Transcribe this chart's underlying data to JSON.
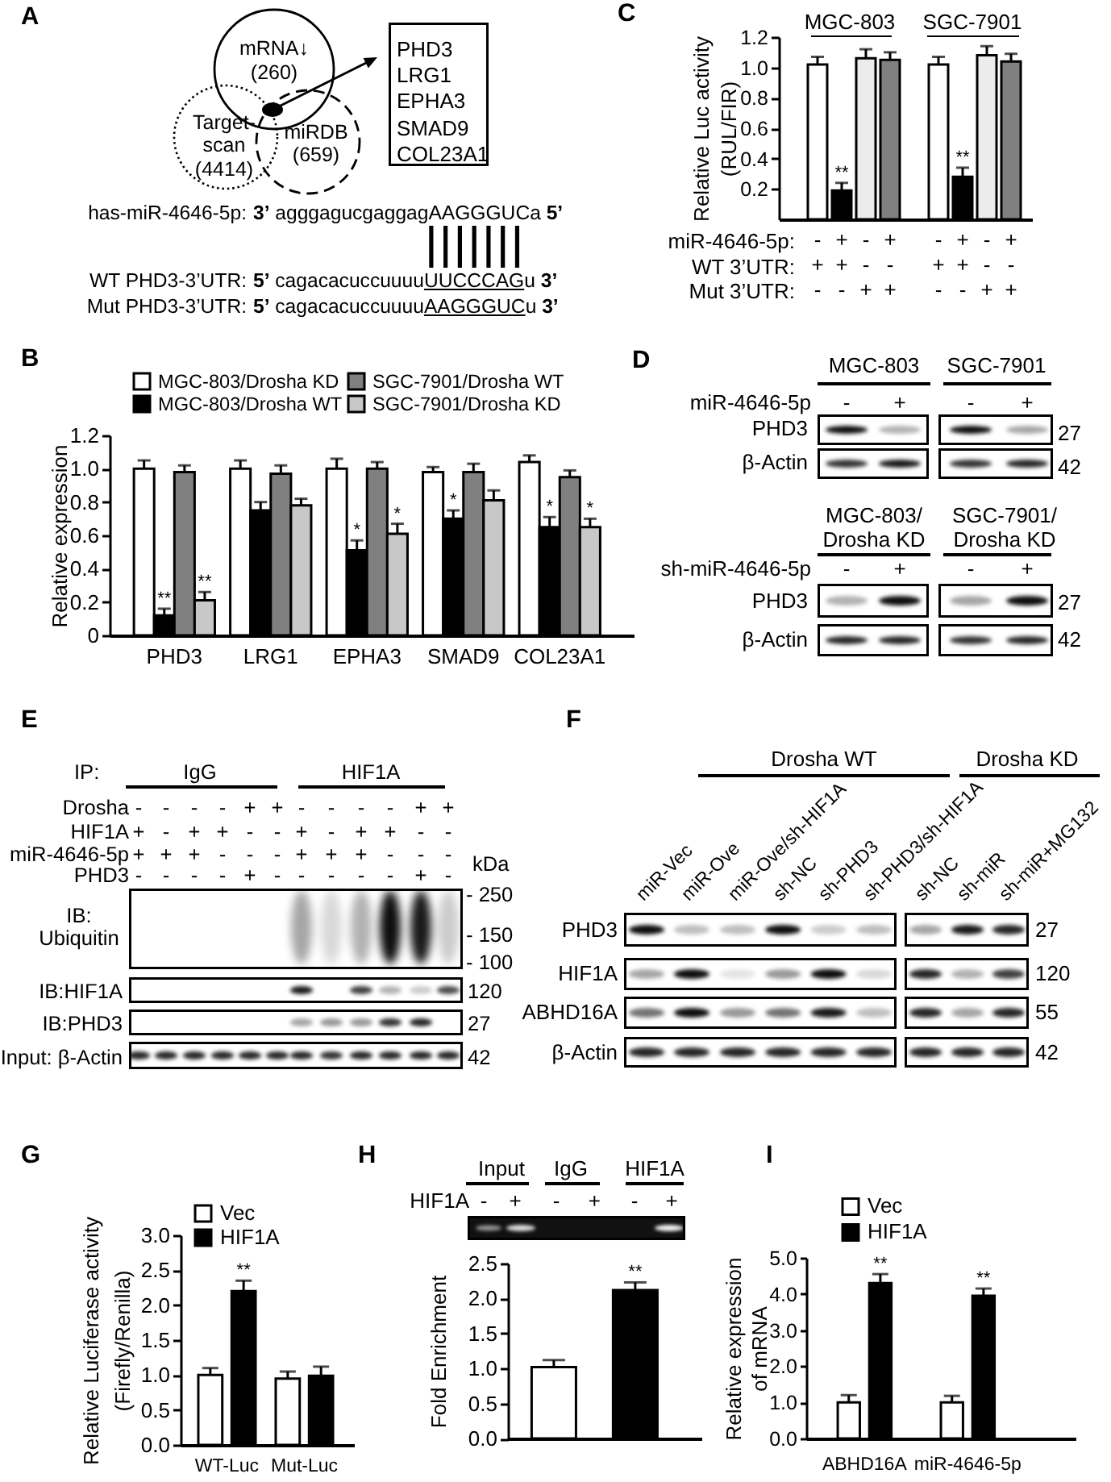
{
  "chart_data": [
    {
      "type": "other",
      "title": "A",
      "annotations": [
        "mRNA↓\n(260)",
        "Target-\nscan\n(4414)",
        "miRDB\n(659)",
        "PHD3\nLRG1\nEPHA3\nSMAD9\nCOL23A1",
        "has-miR-4646-5p:",
        "3’",
        "agggagucgaggagAAGGGUCa",
        "5’",
        "WT PHD3-3’UTR:",
        "5’",
        "cagacacuccuuuu",
        "UUCCCAG",
        "u",
        "3’",
        "Mut PHD3-3’UTR:",
        "5’",
        "cagacacuccuuuu",
        "AAGGGUC",
        "u",
        "3’"
      ]
    },
    {
      "type": "bar",
      "title": "B",
      "categories": [
        "PHD3",
        "LRG1",
        "EPHA3",
        "SMAD9",
        "COL23A1"
      ],
      "series": [
        {
          "name": "MGC-803/Drosha KD",
          "color": "#ffffff",
          "values": [
            1.0,
            1.0,
            1.0,
            0.98,
            1.04
          ],
          "errors": [
            [
              1.0,
              1.05
            ],
            [
              1.0,
              1.05
            ],
            [
              1.0,
              1.06
            ],
            [
              0.98,
              1.01
            ],
            [
              1.04,
              1.08
            ]
          ]
        },
        {
          "name": "MGC-803/Drosha WT",
          "color": "#000000",
          "values": [
            0.12,
            0.75,
            0.51,
            0.7,
            0.65
          ],
          "errors": [
            [
              0.12,
              0.16
            ],
            [
              0.75,
              0.8
            ],
            [
              0.51,
              0.57
            ],
            [
              0.7,
              0.75
            ],
            [
              0.65,
              0.71
            ]
          ],
          "value_labels": [
            "**",
            null,
            "*",
            "*",
            "*"
          ]
        },
        {
          "name": "SGC-7901/Drosha WT",
          "color": "#808080",
          "values": [
            0.98,
            0.97,
            1.0,
            0.98,
            0.95
          ],
          "errors": [
            [
              0.98,
              1.02
            ],
            [
              0.97,
              1.02
            ],
            [
              1.0,
              1.04
            ],
            [
              0.98,
              1.03
            ],
            [
              0.95,
              0.99
            ]
          ]
        },
        {
          "name": "SGC-7901/Drosha KD",
          "color": "#c8c8c8",
          "values": [
            0.21,
            0.78,
            0.61,
            0.81,
            0.65
          ],
          "errors": [
            [
              0.21,
              0.26
            ],
            [
              0.78,
              0.82
            ],
            [
              0.61,
              0.67
            ],
            [
              0.81,
              0.87
            ],
            [
              0.65,
              0.7
            ]
          ],
          "value_labels": [
            "**",
            null,
            "*",
            null,
            "*"
          ]
        }
      ],
      "ylabel": "Relative expression",
      "ylim": [
        0,
        1.2
      ],
      "yticks": [
        0,
        0.2,
        0.4,
        0.6,
        0.8,
        {
          "value": 1,
          "label": "1.0"
        },
        1.2
      ],
      "legend": "top"
    },
    {
      "type": "bar",
      "title": "C",
      "categories": [
        "-\n+\n-",
        "+\n+\n-",
        "-\n-\n+",
        "+\n-\n+",
        "-\n+\n-",
        "+\n+\n-",
        "-\n-\n+",
        "+\n-\n+"
      ],
      "values": [
        1.02,
        0.19,
        1.06,
        1.05,
        1.02,
        0.28,
        1.08,
        1.04
      ],
      "colors": [
        "#ffffff",
        "#000000",
        "#ececec",
        "#808080",
        "#ffffff",
        "#000000",
        "#ececec",
        "#808080"
      ],
      "errors": [
        [
          1.02,
          1.07
        ],
        [
          0.19,
          0.24
        ],
        [
          1.06,
          1.12
        ],
        [
          1.05,
          1.1
        ],
        [
          1.02,
          1.07
        ],
        [
          0.28,
          0.34
        ],
        [
          1.08,
          1.14
        ],
        [
          1.04,
          1.09
        ]
      ],
      "value_labels": [
        null,
        "**",
        null,
        null,
        null,
        "**",
        null,
        null
      ],
      "ylabel": "Relative Luc activity\n(RUL/FIR)",
      "ylim": [
        0,
        1.2
      ],
      "yticks": [
        0.2,
        0.4,
        0.6,
        0.8,
        {
          "value": 1,
          "label": "1.0"
        },
        1.2
      ],
      "annotations": [
        "MGC-803",
        "SGC-7901",
        "miR-4646-5p:",
        "WT 3’UTR:",
        "Mut 3’UTR:"
      ]
    },
    {
      "type": "other",
      "title": "D",
      "annotations": [
        "MGC-803",
        "SGC-7901",
        "miR-4646-5p",
        "- + - +",
        "PHD3",
        "27",
        "β-Actin",
        "42",
        "MGC-803/\nDrosha KD",
        "SGC-7901/\nDrosha KD",
        "sh-miR-4646-5p",
        "- + - +",
        "PHD3",
        "27",
        "β-Actin",
        "42"
      ]
    },
    {
      "type": "other",
      "title": "E",
      "annotations": [
        "IP:",
        "IgG",
        "HIF1A",
        "Drosha",
        "- - - - + + - - - - + +",
        "HIF1A",
        "+ - + + - - + - + + - -",
        "miR-4646-5p",
        "+ + + - - - + + + - - -",
        "PHD3",
        "- - - - + - - - - - + -",
        "kDa",
        "- 250",
        "- 150",
        "- 100",
        "IB:\nUbiquitin",
        "IB:HIF1A",
        "120",
        "IB:PHD3",
        "27",
        "Input: β-Actin",
        "42"
      ]
    },
    {
      "type": "other",
      "title": "F",
      "annotations": [
        "Drosha WT",
        "Drosha KD",
        "miR-Vec",
        "miR-Ove",
        "miR-Ove/sh-HIF1A",
        "sh-NC",
        "sh-PHD3",
        "sh-PHD3/sh-HIF1A",
        "sh-NC",
        "sh-miR",
        "sh-miR+MG132",
        "PHD3",
        "27",
        "HIF1A",
        "120",
        "ABHD16A",
        "55",
        "β-Actin",
        "42"
      ]
    },
    {
      "type": "bar",
      "title": "G",
      "categories": [
        "WT-Luc",
        "Mut-Luc"
      ],
      "series": [
        {
          "name": "Vec",
          "color": "#ffffff",
          "values": [
            1.0,
            0.95
          ],
          "errors": [
            [
              1.0,
              1.1
            ],
            [
              0.95,
              1.05
            ]
          ]
        },
        {
          "name": "HIF1A",
          "color": "#000000",
          "values": [
            2.2,
            0.99
          ],
          "errors": [
            [
              2.2,
              2.35
            ],
            [
              0.99,
              1.12
            ]
          ],
          "value_labels": [
            "**",
            null
          ]
        }
      ],
      "ylabel": "Relative Luciferase activity\n(Firefly/Renilla)",
      "ylim": [
        0,
        3
      ],
      "yticks": [
        {
          "value": 0,
          "label": "0.0"
        },
        0.5,
        {
          "value": 1,
          "label": "1.0"
        },
        1.5,
        {
          "value": 2,
          "label": "2.0"
        },
        2.5,
        {
          "value": 3,
          "label": "3.0"
        }
      ],
      "legend": "top left"
    },
    {
      "type": "bar",
      "title": "H",
      "categories": [
        null,
        null
      ],
      "values": [
        1.02,
        2.12
      ],
      "colors": [
        "#ffffff",
        "#000000"
      ],
      "errors": [
        [
          1.02,
          1.12
        ],
        [
          2.12,
          2.23
        ]
      ],
      "value_labels": [
        null,
        "**"
      ],
      "ylabel": "Fold Enrichment",
      "ylim": [
        0,
        2.5
      ],
      "yticks": [
        {
          "value": 0,
          "label": "0.0"
        },
        0.5,
        {
          "value": 1,
          "label": "1.0"
        },
        1.5,
        {
          "value": 2,
          "label": "2.0"
        },
        2.5
      ],
      "annotations": [
        "Input",
        "IgG",
        "HIF1A",
        "HIF1A",
        "- + - + - +"
      ]
    },
    {
      "type": "bar",
      "title": "I",
      "categories": [
        "ABHD16A",
        "miR-4646-5p"
      ],
      "series": [
        {
          "name": "Vec",
          "color": "#ffffff",
          "values": [
            1.0,
            1.0
          ],
          "errors": [
            [
              1.0,
              1.2
            ],
            [
              1.0,
              1.18
            ]
          ]
        },
        {
          "name": "HIF1A",
          "color": "#000000",
          "values": [
            4.3,
            3.95
          ],
          "errors": [
            [
              4.3,
              4.55
            ],
            [
              3.95,
              4.15
            ]
          ],
          "value_labels": [
            "**",
            "**"
          ]
        }
      ],
      "ylabel": "Relative expression\nof mRNA",
      "ylim": [
        0,
        5
      ],
      "yticks": [
        {
          "value": 0,
          "label": "0.0"
        },
        {
          "value": 1,
          "label": "1.0"
        },
        {
          "value": 2,
          "label": "2.0"
        },
        {
          "value": 3,
          "label": "3.0"
        },
        {
          "value": 4,
          "label": "4.0"
        },
        {
          "value": 5,
          "label": "5.0"
        }
      ],
      "legend": "top left"
    }
  ]
}
